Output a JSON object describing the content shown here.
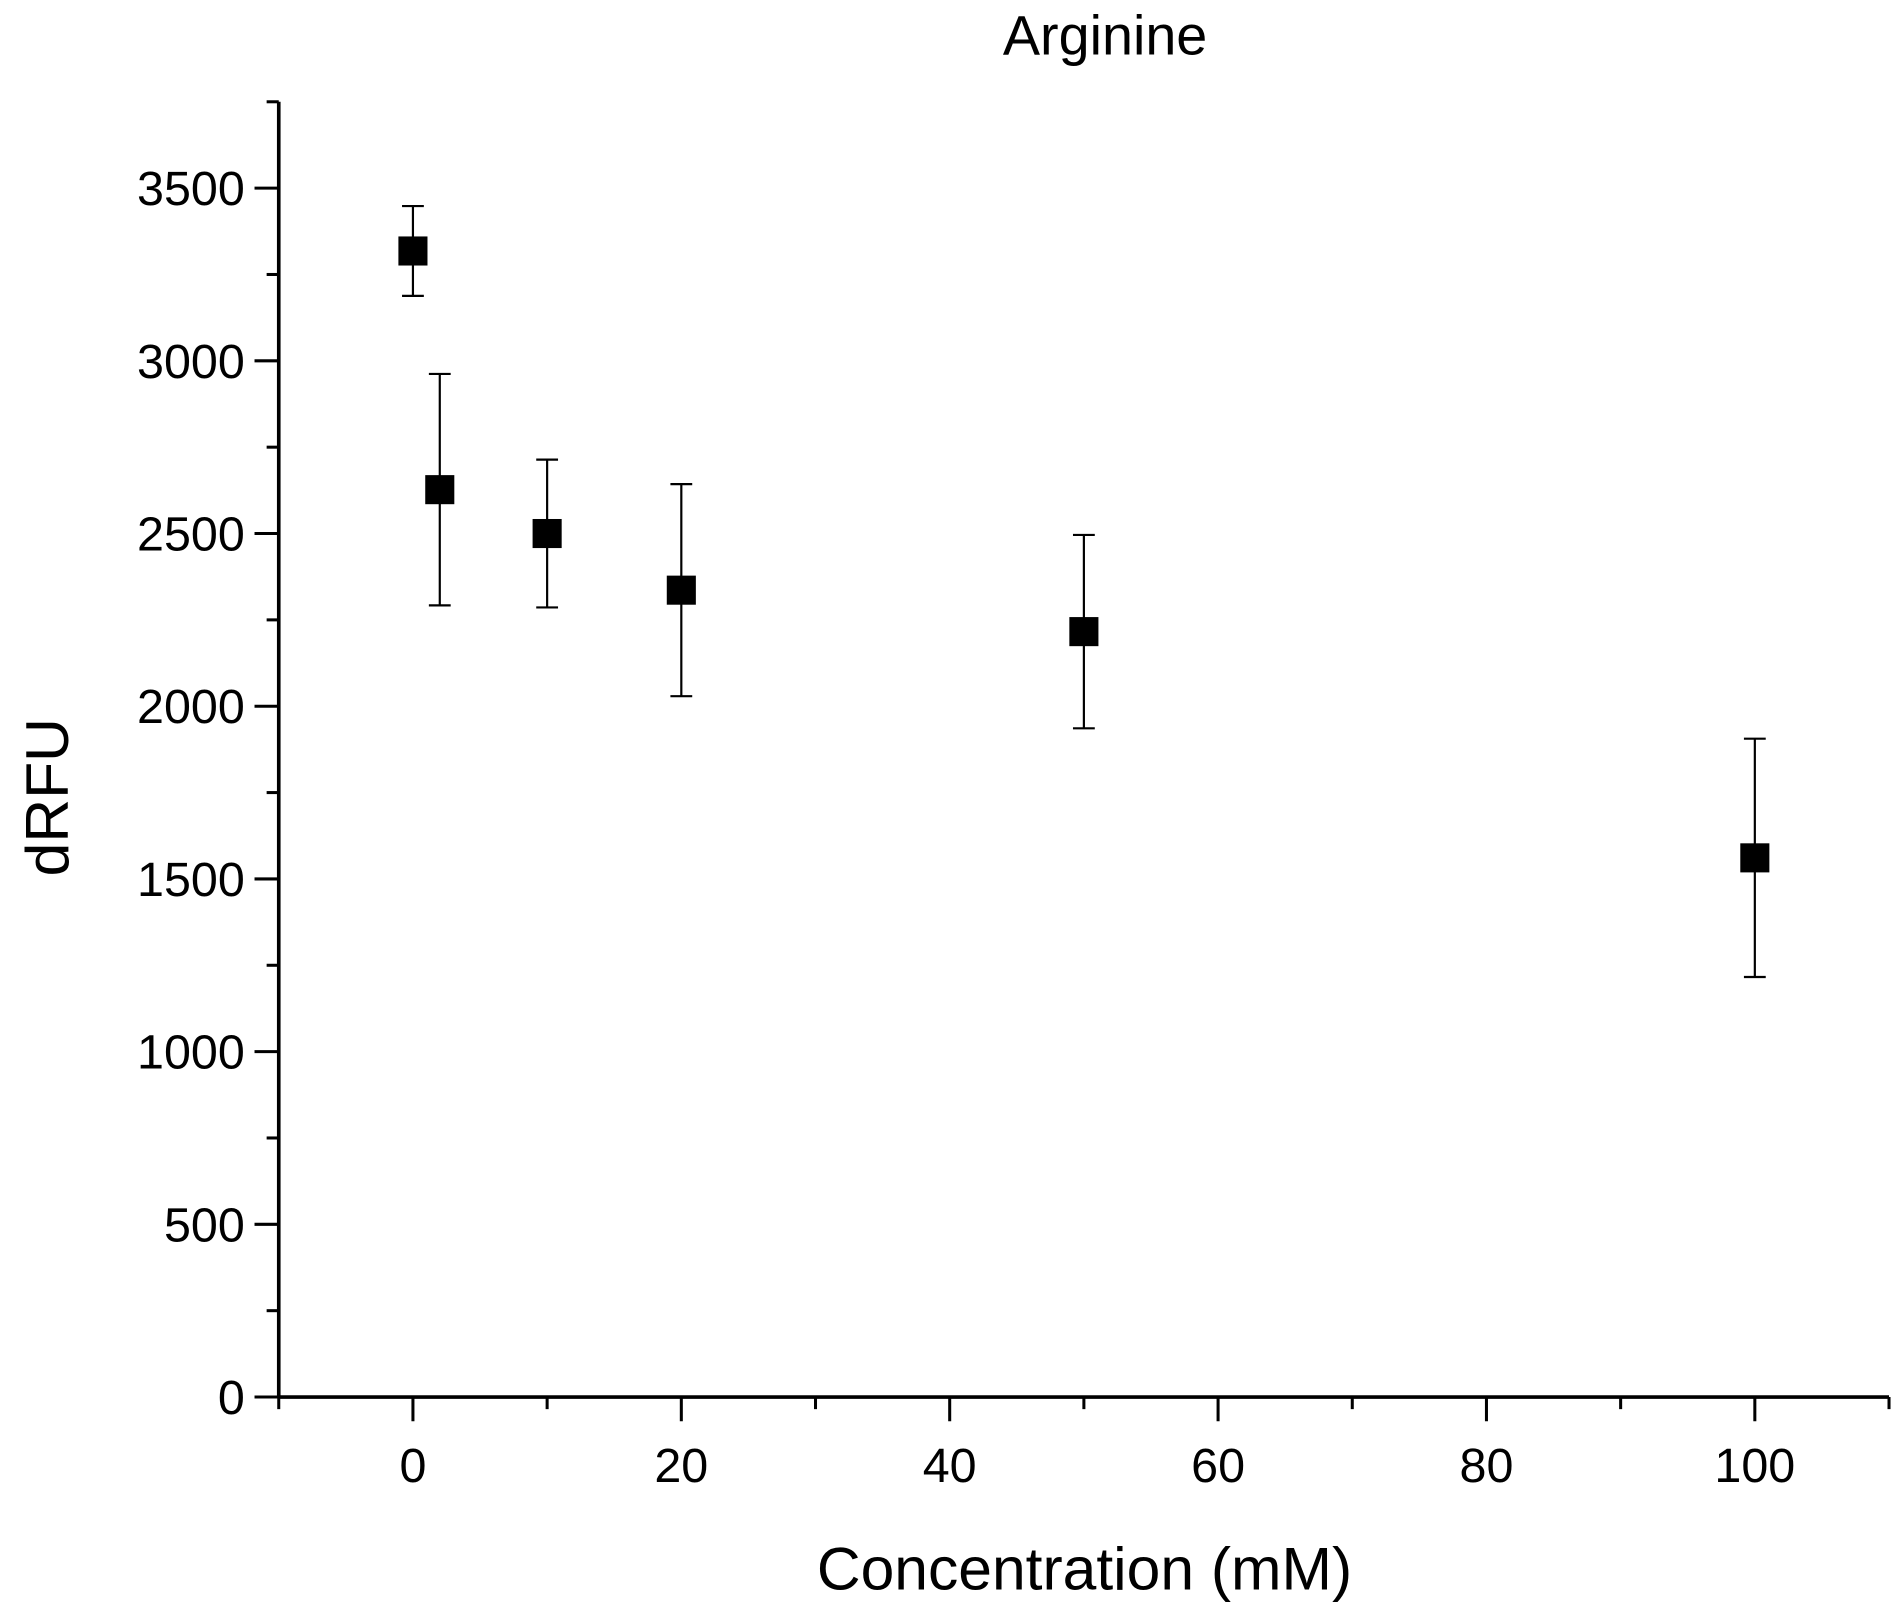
{
  "chart_data": {
    "type": "scatter",
    "title": "Arginine",
    "xlabel": "Concentration (mM)",
    "ylabel": "dRFU",
    "xlim": [
      -10,
      110
    ],
    "ylim": [
      0,
      3750
    ],
    "xticks": [
      0,
      20,
      40,
      60,
      80,
      100
    ],
    "yticks": [
      0,
      500,
      1000,
      1500,
      2000,
      2500,
      3000,
      3500
    ],
    "x_minor_step": 10,
    "y_minor_step": 250,
    "grid": false,
    "marker": "square",
    "color": "#000000",
    "series": [
      {
        "name": "Arginine",
        "x": [
          0,
          2,
          10,
          20,
          50,
          100
        ],
        "y": [
          3318,
          2627,
          2500,
          2336,
          2216,
          1561
        ],
        "yerr": [
          130,
          335,
          214,
          307,
          280,
          345
        ]
      }
    ]
  }
}
